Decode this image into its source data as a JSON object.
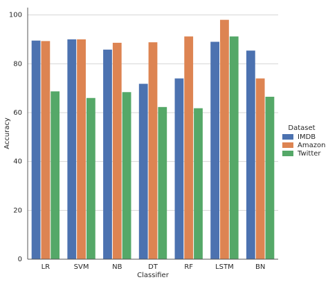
{
  "chart_data": {
    "type": "bar",
    "x_label": "Classifier",
    "y_label": "Accuracy",
    "categories": [
      "LR",
      "SVM",
      "NB",
      "DT",
      "RF",
      "LSTM",
      "BN"
    ],
    "series": [
      {
        "name": "IMDB",
        "color": "#4c72b0",
        "values": [
          89.5,
          90,
          85.8,
          71.8,
          74,
          89,
          85.4
        ]
      },
      {
        "name": "Amazon",
        "color": "#dd8452",
        "values": [
          89.3,
          90,
          88.6,
          88.8,
          91.2,
          98,
          74
        ]
      },
      {
        "name": "Twitter",
        "color": "#55a868",
        "values": [
          68.7,
          66,
          68.4,
          62.3,
          61.8,
          91.2,
          66.5
        ]
      }
    ],
    "legend_title": "Dataset",
    "legend_position": "right",
    "ylim": [
      0,
      103
    ],
    "yticks": [
      0,
      20,
      40,
      60,
      80,
      100
    ],
    "grid": true
  }
}
